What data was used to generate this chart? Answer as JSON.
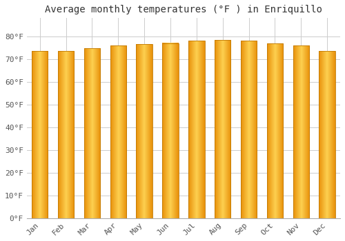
{
  "title": "Average monthly temperatures (°F ) in Enriquillo",
  "months": [
    "Jan",
    "Feb",
    "Mar",
    "Apr",
    "May",
    "Jun",
    "Jul",
    "Aug",
    "Sep",
    "Oct",
    "Nov",
    "Dec"
  ],
  "values": [
    73.4,
    73.6,
    74.8,
    76.0,
    76.5,
    77.0,
    78.0,
    78.3,
    78.0,
    76.8,
    75.9,
    73.6
  ],
  "bar_color_left": "#E8900A",
  "bar_color_center": "#FDD050",
  "bar_color_right": "#E8900A",
  "background_color": "#ffffff",
  "grid_color": "#cccccc",
  "ytick_labels": [
    "0°F",
    "10°F",
    "20°F",
    "30°F",
    "40°F",
    "50°F",
    "60°F",
    "70°F",
    "80°F"
  ],
  "ytick_values": [
    0,
    10,
    20,
    30,
    40,
    50,
    60,
    70,
    80
  ],
  "ylim": [
    0,
    88
  ],
  "title_fontsize": 10,
  "tick_fontsize": 8,
  "bar_width": 0.62
}
